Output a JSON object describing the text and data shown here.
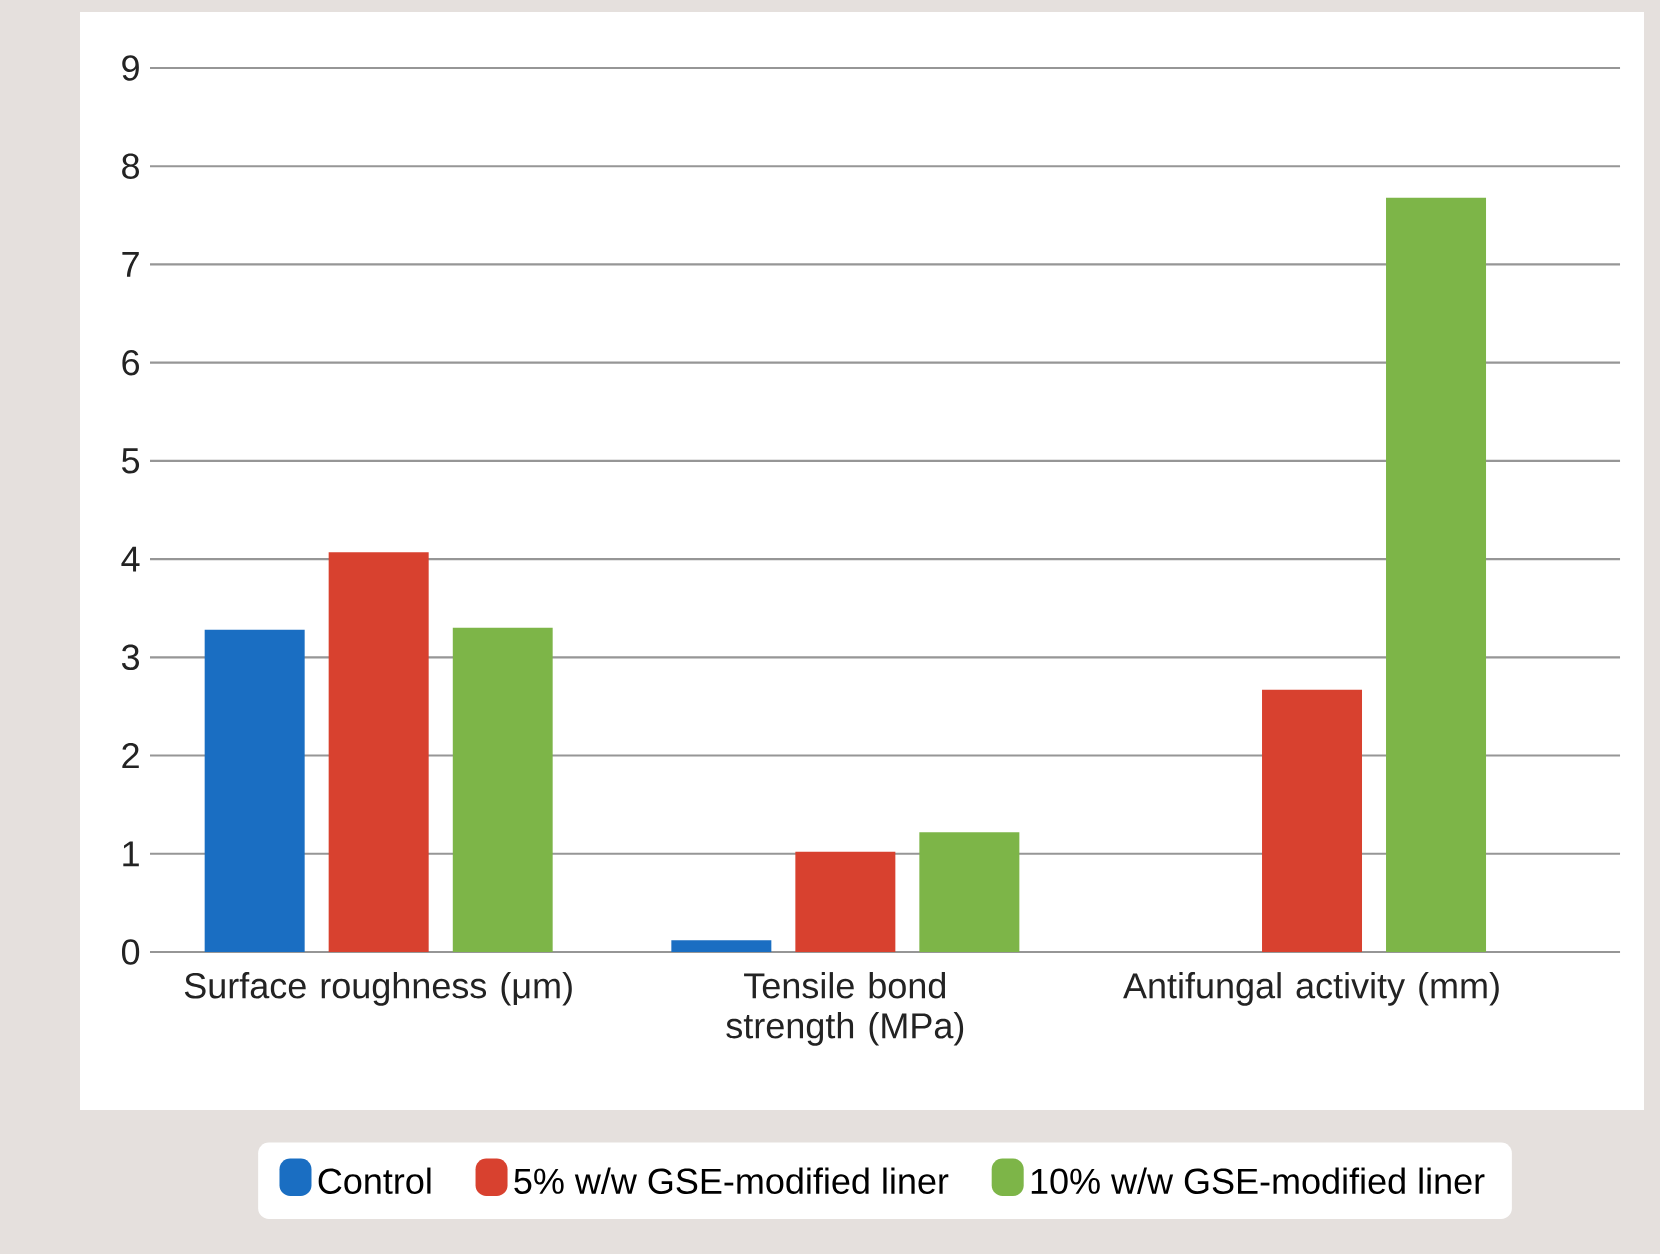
{
  "chart_data": {
    "type": "bar",
    "categories": [
      "Surface roughness (μm)",
      "Tensile bond strength (MPa)",
      "Antifungal activity (mm)"
    ],
    "series": [
      {
        "name": "Control",
        "color": "#1a6ec2",
        "values": [
          3.28,
          0.12,
          null
        ]
      },
      {
        "name": "5% w/w GSE-modified liner",
        "color": "#d8412f",
        "values": [
          4.07,
          1.02,
          2.67
        ]
      },
      {
        "name": "10% w/w GSE-modified liner",
        "color": "#7db548",
        "values": [
          3.3,
          1.22,
          7.68
        ]
      }
    ],
    "ylim": [
      0,
      9
    ],
    "yticks": [
      0,
      1,
      2,
      3,
      4,
      5,
      6,
      7,
      8,
      9
    ],
    "grid": "y",
    "legend": "bottom"
  }
}
